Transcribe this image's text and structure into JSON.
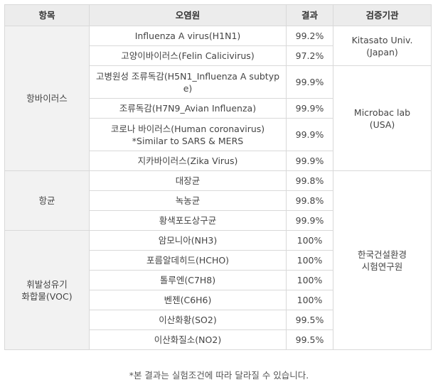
{
  "header": {
    "col_item": "항목",
    "col_pollutant": "오염원",
    "col_result": "결과",
    "col_agency": "검증기관"
  },
  "groups": {
    "antivirus": "항바이러스",
    "antibacterial": "항균",
    "voc_line1": "휘발성유기",
    "voc_line2": "화합물(VOC)"
  },
  "agencies": {
    "kitasato_line1": "Kitasato Univ.",
    "kitasato_line2": "(Japan)",
    "microbac_line1": "Microbac lab",
    "microbac_line2": "(USA)",
    "korea_line1": "한국건설환경",
    "korea_line2": "시험연구원"
  },
  "rows": [
    {
      "pollutant": "Influenza A virus(H1N1)",
      "result": "99.2%"
    },
    {
      "pollutant": "고양이바이러스(Felin Calicivirus)",
      "result": "97.2%"
    },
    {
      "pollutant_line1": "고병원성 조류독감(H5N1_Influenza A subtyp",
      "pollutant_line2": "e)",
      "result": "99.9%"
    },
    {
      "pollutant": "조류독감(H7N9_Avian Influenza)",
      "result": "99.9%"
    },
    {
      "pollutant_line1": "코로나 바이러스(Human coronavirus)",
      "pollutant_line2": "*Similar to SARS & MERS",
      "result": "99.9%"
    },
    {
      "pollutant": "지카바이러스(Zika Virus)",
      "result": "99.9%"
    },
    {
      "pollutant": "대장균",
      "result": "99.8%"
    },
    {
      "pollutant": "녹농균",
      "result": "99.8%"
    },
    {
      "pollutant": "황색포도상구균",
      "result": "99.9%"
    },
    {
      "pollutant": "암모니아(NH3)",
      "result": "100%"
    },
    {
      "pollutant": "포름알데히드(HCHO)",
      "result": "100%"
    },
    {
      "pollutant": "톨루엔(C7H8)",
      "result": "100%"
    },
    {
      "pollutant": "벤젠(C6H6)",
      "result": "100%"
    },
    {
      "pollutant": "이산화황(SO2)",
      "result": "99.5%"
    },
    {
      "pollutant": "이산화질소(NO2)",
      "result": "99.5%"
    }
  ],
  "footnote": "*본 결과는 실험조건에 따라 달라질 수 있습니다."
}
